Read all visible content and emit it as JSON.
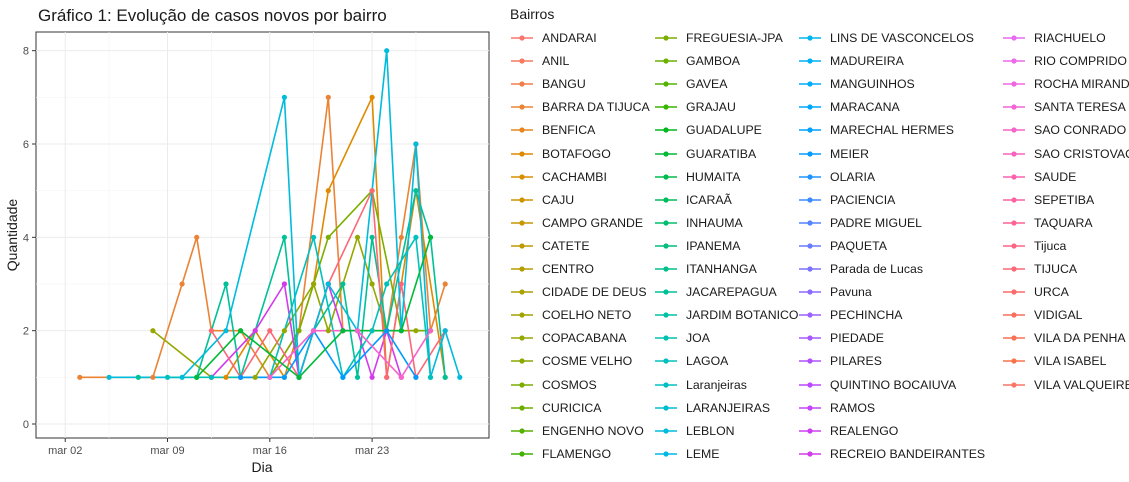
{
  "chart_data": {
    "type": "line",
    "title": "Gráfico 1: Evolução de casos novos por bairro",
    "xlabel": "Dia",
    "ylabel": "Quantidade",
    "legend_title": "Bairros",
    "legend_position": "right",
    "grid": true,
    "x_type": "date",
    "x_ticks": [
      "mar 02",
      "mar 09",
      "mar 16",
      "mar 23"
    ],
    "x_tick_dates": [
      "2020-03-02",
      "2020-03-09",
      "2020-03-16",
      "2020-03-23"
    ],
    "xlim": [
      "2020-02-29",
      "2020-03-31"
    ],
    "y_ticks": [
      "0",
      "2",
      "4",
      "6",
      "8"
    ],
    "ylim": [
      -0.3,
      8.4
    ],
    "legend_entries": [
      {
        "name": "ANDARAI",
        "color": "#F8766D"
      },
      {
        "name": "ANIL",
        "color": "#F57A5E"
      },
      {
        "name": "BANGU",
        "color": "#F07E4C"
      },
      {
        "name": "BARRA DA TIJUCA",
        "color": "#EB8335"
      },
      {
        "name": "BENFICA",
        "color": "#E6861D"
      },
      {
        "name": "BOTAFOGO",
        "color": "#DF8A00"
      },
      {
        "name": "CACHAMBI",
        "color": "#D78F00"
      },
      {
        "name": "CAJU",
        "color": "#D09300"
      },
      {
        "name": "CAMPO GRANDE",
        "color": "#C79600"
      },
      {
        "name": "CATETE",
        "color": "#BE9A00"
      },
      {
        "name": "CENTRO",
        "color": "#B59D00"
      },
      {
        "name": "CIDADE DE DEUS",
        "color": "#ABA100"
      },
      {
        "name": "COELHO NETO",
        "color": "#A1A400"
      },
      {
        "name": "COPACABANA",
        "color": "#95A700"
      },
      {
        "name": "COSME VELHO",
        "color": "#89A900"
      },
      {
        "name": "COSMOS",
        "color": "#7BAC00"
      },
      {
        "name": "CURICICA",
        "color": "#6CAE00"
      },
      {
        "name": "ENGENHO NOVO",
        "color": "#59B000"
      },
      {
        "name": "FLAMENGO",
        "color": "#40B200"
      },
      {
        "name": "FREGUESIA-JPA",
        "color": "#7CAE00"
      },
      {
        "name": "GAMBOA",
        "color": "#6BB100"
      },
      {
        "name": "GAVEA",
        "color": "#55B300"
      },
      {
        "name": "GRAJAU",
        "color": "#39B600"
      },
      {
        "name": "GUADALUPE",
        "color": "#00B81F"
      },
      {
        "name": "GUARATIBA",
        "color": "#00BA38"
      },
      {
        "name": "HUMAITA",
        "color": "#00BB4C"
      },
      {
        "name": "ICARAÃ",
        "color": "#00BC5D"
      },
      {
        "name": "INHAUMA",
        "color": "#00BD6D"
      },
      {
        "name": "IPANEMA",
        "color": "#00BE7C"
      },
      {
        "name": "ITANHANGA",
        "color": "#00BF8A"
      },
      {
        "name": "JACAREPAGUA",
        "color": "#00C098"
      },
      {
        "name": "JARDIM BOTANICO",
        "color": "#00C0A5"
      },
      {
        "name": "JOA",
        "color": "#00C0B2"
      },
      {
        "name": "LAGOA",
        "color": "#00C0BE"
      },
      {
        "name": "Laranjeiras",
        "color": "#00BFC4"
      },
      {
        "name": "LARANJEIRAS",
        "color": "#00BDD0"
      },
      {
        "name": "LEBLON",
        "color": "#00BBDB"
      },
      {
        "name": "LEME",
        "color": "#00B8E5"
      },
      {
        "name": "LINS DE VASCONCELOS",
        "color": "#00B5EE"
      },
      {
        "name": "MADUREIRA",
        "color": "#00B0F6"
      },
      {
        "name": "MANGUINHOS",
        "color": "#00ACFC"
      },
      {
        "name": "MARACANA",
        "color": "#00A7FF"
      },
      {
        "name": "MARECHAL HERMES",
        "color": "#00A1FF"
      },
      {
        "name": "MEIER",
        "color": "#009BFF"
      },
      {
        "name": "OLARIA",
        "color": "#1F94FF"
      },
      {
        "name": "PACIENCIA",
        "color": "#3B8CFF"
      },
      {
        "name": "PADRE MIGUEL",
        "color": "#5484FF"
      },
      {
        "name": "PAQUETA",
        "color": "#6A7BFF"
      },
      {
        "name": "Parada de Lucas",
        "color": "#7C72FF"
      },
      {
        "name": "Pavuna",
        "color": "#8C69FF"
      },
      {
        "name": "PECHINCHA",
        "color": "#9A61FF"
      },
      {
        "name": "PIEDADE",
        "color": "#A758FF"
      },
      {
        "name": "PILARES",
        "color": "#B250FF"
      },
      {
        "name": "QUINTINO BOCAIUVA",
        "color": "#BC49FF"
      },
      {
        "name": "RAMOS",
        "color": "#C543F9"
      },
      {
        "name": "REALENGO",
        "color": "#CD3EF3"
      },
      {
        "name": "RECREIO BANDEIRANTES",
        "color": "#D33AEC"
      },
      {
        "name": "RIACHUELO",
        "color": "#E76BF3"
      },
      {
        "name": "RIO COMPRIDO",
        "color": "#EC69EA"
      },
      {
        "name": "ROCHA MIRANDA",
        "color": "#F066E0"
      },
      {
        "name": "SANTA TERESA",
        "color": "#F364D5"
      },
      {
        "name": "SAO CONRADO",
        "color": "#F663C9"
      },
      {
        "name": "SAO CRISTOVAO",
        "color": "#F863BC"
      },
      {
        "name": "SAUDE",
        "color": "#FA62AF"
      },
      {
        "name": "SEPETIBA",
        "color": "#FB63A1"
      },
      {
        "name": "TAQUARA",
        "color": "#FC6493"
      },
      {
        "name": "Tijuca",
        "color": "#FC6685"
      },
      {
        "name": "TIJUCA",
        "color": "#FB6877"
      },
      {
        "name": "URCA",
        "color": "#FA6B6A"
      },
      {
        "name": "VIDIGAL",
        "color": "#F96E5E"
      },
      {
        "name": "VILA DA PENHA",
        "color": "#F87153"
      },
      {
        "name": "VILA ISABEL",
        "color": "#F7744A"
      },
      {
        "name": "VILA VALQUEIRE",
        "color": "#F87768"
      }
    ],
    "series": [
      {
        "name": "BARRA DA TIJUCA",
        "color": "#EB8335",
        "points": [
          [
            "2020-03-03",
            1
          ],
          [
            "2020-03-08",
            1
          ],
          [
            "2020-03-10",
            3
          ],
          [
            "2020-03-11",
            4
          ],
          [
            "2020-03-12",
            2
          ],
          [
            "2020-03-14",
            2
          ],
          [
            "2020-03-16",
            1
          ],
          [
            "2020-03-18",
            2
          ],
          [
            "2020-03-20",
            7
          ],
          [
            "2020-03-21",
            2
          ],
          [
            "2020-03-23",
            2
          ],
          [
            "2020-03-24",
            2
          ],
          [
            "2020-03-25",
            4
          ],
          [
            "2020-03-26",
            6
          ],
          [
            "2020-03-27",
            2
          ],
          [
            "2020-03-28",
            3
          ]
        ]
      },
      {
        "name": "BOTAFOGO",
        "color": "#DF8A00",
        "points": [
          [
            "2020-03-13",
            1
          ],
          [
            "2020-03-15",
            2
          ],
          [
            "2020-03-17",
            1
          ],
          [
            "2020-03-19",
            3
          ],
          [
            "2020-03-20",
            5
          ],
          [
            "2020-03-23",
            7
          ],
          [
            "2020-03-24",
            1
          ],
          [
            "2020-03-26",
            5
          ],
          [
            "2020-03-28",
            1
          ]
        ]
      },
      {
        "name": "COPACABANA",
        "color": "#95A700",
        "points": [
          [
            "2020-03-08",
            2
          ],
          [
            "2020-03-12",
            1
          ],
          [
            "2020-03-15",
            1
          ],
          [
            "2020-03-17",
            2
          ],
          [
            "2020-03-19",
            3
          ],
          [
            "2020-03-20",
            2
          ],
          [
            "2020-03-22",
            4
          ],
          [
            "2020-03-23",
            3
          ],
          [
            "2020-03-24",
            2
          ],
          [
            "2020-03-26",
            2
          ],
          [
            "2020-03-27",
            2
          ]
        ]
      },
      {
        "name": "FREGUESIA-JPA",
        "color": "#7CAE00",
        "points": [
          [
            "2020-03-16",
            1
          ],
          [
            "2020-03-18",
            2
          ],
          [
            "2020-03-20",
            4
          ],
          [
            "2020-03-23",
            5
          ],
          [
            "2020-03-25",
            2
          ],
          [
            "2020-03-27",
            2
          ]
        ]
      },
      {
        "name": "JACAREPAGUA",
        "color": "#00C098",
        "points": [
          [
            "2020-03-07",
            1
          ],
          [
            "2020-03-11",
            1
          ],
          [
            "2020-03-13",
            3
          ],
          [
            "2020-03-14",
            1
          ],
          [
            "2020-03-17",
            4
          ],
          [
            "2020-03-18",
            1
          ],
          [
            "2020-03-19",
            2
          ],
          [
            "2020-03-21",
            3
          ],
          [
            "2020-03-22",
            1
          ],
          [
            "2020-03-23",
            4
          ],
          [
            "2020-03-24",
            2
          ],
          [
            "2020-03-26",
            5
          ],
          [
            "2020-03-27",
            4
          ],
          [
            "2020-03-28",
            1
          ]
        ]
      },
      {
        "name": "RECREIO BANDEIRANTES",
        "color": "#D33AEC",
        "points": [
          [
            "2020-03-12",
            1
          ],
          [
            "2020-03-15",
            2
          ],
          [
            "2020-03-17",
            3
          ],
          [
            "2020-03-18",
            1
          ],
          [
            "2020-03-19",
            2
          ],
          [
            "2020-03-20",
            3
          ],
          [
            "2020-03-21",
            2
          ],
          [
            "2020-03-22",
            2
          ],
          [
            "2020-03-23",
            1
          ],
          [
            "2020-03-24",
            2
          ],
          [
            "2020-03-25",
            1
          ]
        ]
      },
      {
        "name": "TIJUCA",
        "color": "#FB6877",
        "points": [
          [
            "2020-03-12",
            2
          ],
          [
            "2020-03-14",
            1
          ],
          [
            "2020-03-16",
            2
          ],
          [
            "2020-03-18",
            1
          ],
          [
            "2020-03-20",
            3
          ],
          [
            "2020-03-23",
            5
          ],
          [
            "2020-03-24",
            1
          ],
          [
            "2020-03-25",
            3
          ],
          [
            "2020-03-26",
            1
          ],
          [
            "2020-03-28",
            2
          ]
        ]
      },
      {
        "name": "LEBLON",
        "color": "#00BBDB",
        "points": [
          [
            "2020-03-05",
            1
          ],
          [
            "2020-03-10",
            1
          ],
          [
            "2020-03-13",
            2
          ],
          [
            "2020-03-17",
            7
          ],
          [
            "2020-03-18",
            1
          ],
          [
            "2020-03-20",
            3
          ],
          [
            "2020-03-22",
            2
          ],
          [
            "2020-03-24",
            8
          ],
          [
            "2020-03-25",
            2
          ],
          [
            "2020-03-26",
            6
          ],
          [
            "2020-03-27",
            1
          ],
          [
            "2020-03-28",
            2
          ],
          [
            "2020-03-29",
            1
          ]
        ]
      },
      {
        "name": "LAGOA",
        "color": "#00C0BE",
        "points": [
          [
            "2020-03-09",
            1
          ],
          [
            "2020-03-12",
            1
          ],
          [
            "2020-03-16",
            1
          ],
          [
            "2020-03-19",
            4
          ],
          [
            "2020-03-21",
            1
          ],
          [
            "2020-03-23",
            2
          ],
          [
            "2020-03-24",
            3
          ],
          [
            "2020-03-26",
            4
          ],
          [
            "2020-03-27",
            1
          ]
        ]
      },
      {
        "name": "MEIER",
        "color": "#009BFF",
        "points": [
          [
            "2020-03-14",
            1
          ],
          [
            "2020-03-17",
            1
          ],
          [
            "2020-03-19",
            2
          ],
          [
            "2020-03-21",
            1
          ],
          [
            "2020-03-24",
            2
          ],
          [
            "2020-03-26",
            1
          ]
        ]
      },
      {
        "name": "SAO CONRADO",
        "color": "#F663C9",
        "points": [
          [
            "2020-03-16",
            1
          ],
          [
            "2020-03-19",
            2
          ],
          [
            "2020-03-22",
            2
          ],
          [
            "2020-03-25",
            1
          ],
          [
            "2020-03-27",
            2
          ]
        ]
      },
      {
        "name": "GUARATIBA",
        "color": "#00BA38",
        "points": [
          [
            "2020-03-11",
            1
          ],
          [
            "2020-03-14",
            2
          ],
          [
            "2020-03-18",
            1
          ],
          [
            "2020-03-21",
            2
          ],
          [
            "2020-03-25",
            2
          ],
          [
            "2020-03-27",
            4
          ]
        ]
      }
    ]
  }
}
